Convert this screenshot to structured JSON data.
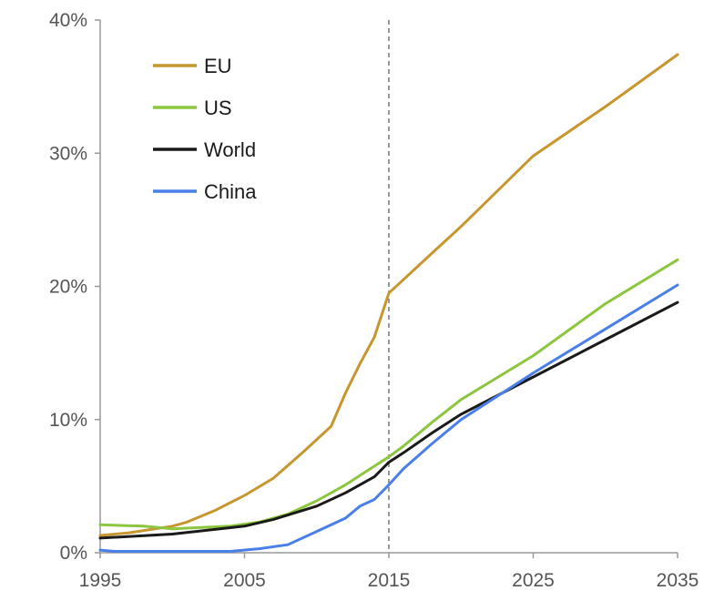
{
  "chart_data": {
    "type": "line",
    "title": "",
    "xlabel": "",
    "ylabel": "",
    "xlim": [
      1995,
      2035
    ],
    "ylim": [
      0,
      40
    ],
    "x_ticks": [
      "1995",
      "2005",
      "2015",
      "2025",
      "2035"
    ],
    "y_ticks": [
      "0%",
      "10%",
      "20%",
      "30%",
      "40%"
    ],
    "grid": false,
    "legend_position": "top-left",
    "reference_line": {
      "x": 2015,
      "style": "dashed"
    },
    "series": [
      {
        "name": "EU",
        "color": "#c8962e",
        "points": [
          [
            1995,
            1.3
          ],
          [
            1997,
            1.5
          ],
          [
            2000,
            2.0
          ],
          [
            2001,
            2.3
          ],
          [
            2003,
            3.2
          ],
          [
            2005,
            4.3
          ],
          [
            2007,
            5.6
          ],
          [
            2009,
            7.5
          ],
          [
            2011,
            9.5
          ],
          [
            2012,
            12.0
          ],
          [
            2013,
            14.2
          ],
          [
            2014,
            16.2
          ],
          [
            2015,
            19.5
          ],
          [
            2016,
            20.5
          ],
          [
            2018,
            22.5
          ],
          [
            2020,
            24.5
          ],
          [
            2025,
            29.8
          ],
          [
            2030,
            33.5
          ],
          [
            2035,
            37.4
          ]
        ]
      },
      {
        "name": "US",
        "color": "#8cc63f",
        "points": [
          [
            1995,
            2.1
          ],
          [
            1998,
            2.0
          ],
          [
            2000,
            1.8
          ],
          [
            2002,
            1.9
          ],
          [
            2004,
            2.0
          ],
          [
            2006,
            2.3
          ],
          [
            2008,
            2.9
          ],
          [
            2010,
            3.9
          ],
          [
            2012,
            5.1
          ],
          [
            2014,
            6.5
          ],
          [
            2015,
            7.2
          ],
          [
            2016,
            8.0
          ],
          [
            2018,
            9.8
          ],
          [
            2020,
            11.5
          ],
          [
            2025,
            14.8
          ],
          [
            2030,
            18.7
          ],
          [
            2035,
            22.0
          ]
        ]
      },
      {
        "name": "World",
        "color": "#1a1a1a",
        "points": [
          [
            1995,
            1.1
          ],
          [
            2000,
            1.4
          ],
          [
            2005,
            2.0
          ],
          [
            2007,
            2.5
          ],
          [
            2010,
            3.5
          ],
          [
            2012,
            4.5
          ],
          [
            2014,
            5.7
          ],
          [
            2015,
            6.8
          ],
          [
            2016,
            7.5
          ],
          [
            2018,
            9.0
          ],
          [
            2020,
            10.4
          ],
          [
            2025,
            13.2
          ],
          [
            2030,
            16.0
          ],
          [
            2035,
            18.8
          ]
        ]
      },
      {
        "name": "China",
        "color": "#4a7ee8",
        "points": [
          [
            1995,
            0.2
          ],
          [
            1996,
            0.1
          ],
          [
            2000,
            0.1
          ],
          [
            2004,
            0.1
          ],
          [
            2006,
            0.3
          ],
          [
            2008,
            0.6
          ],
          [
            2010,
            1.6
          ],
          [
            2012,
            2.6
          ],
          [
            2013,
            3.5
          ],
          [
            2014,
            4.0
          ],
          [
            2015,
            5.1
          ],
          [
            2016,
            6.3
          ],
          [
            2018,
            8.2
          ],
          [
            2020,
            10.0
          ],
          [
            2025,
            13.5
          ],
          [
            2030,
            16.8
          ],
          [
            2035,
            20.1
          ]
        ]
      }
    ]
  }
}
